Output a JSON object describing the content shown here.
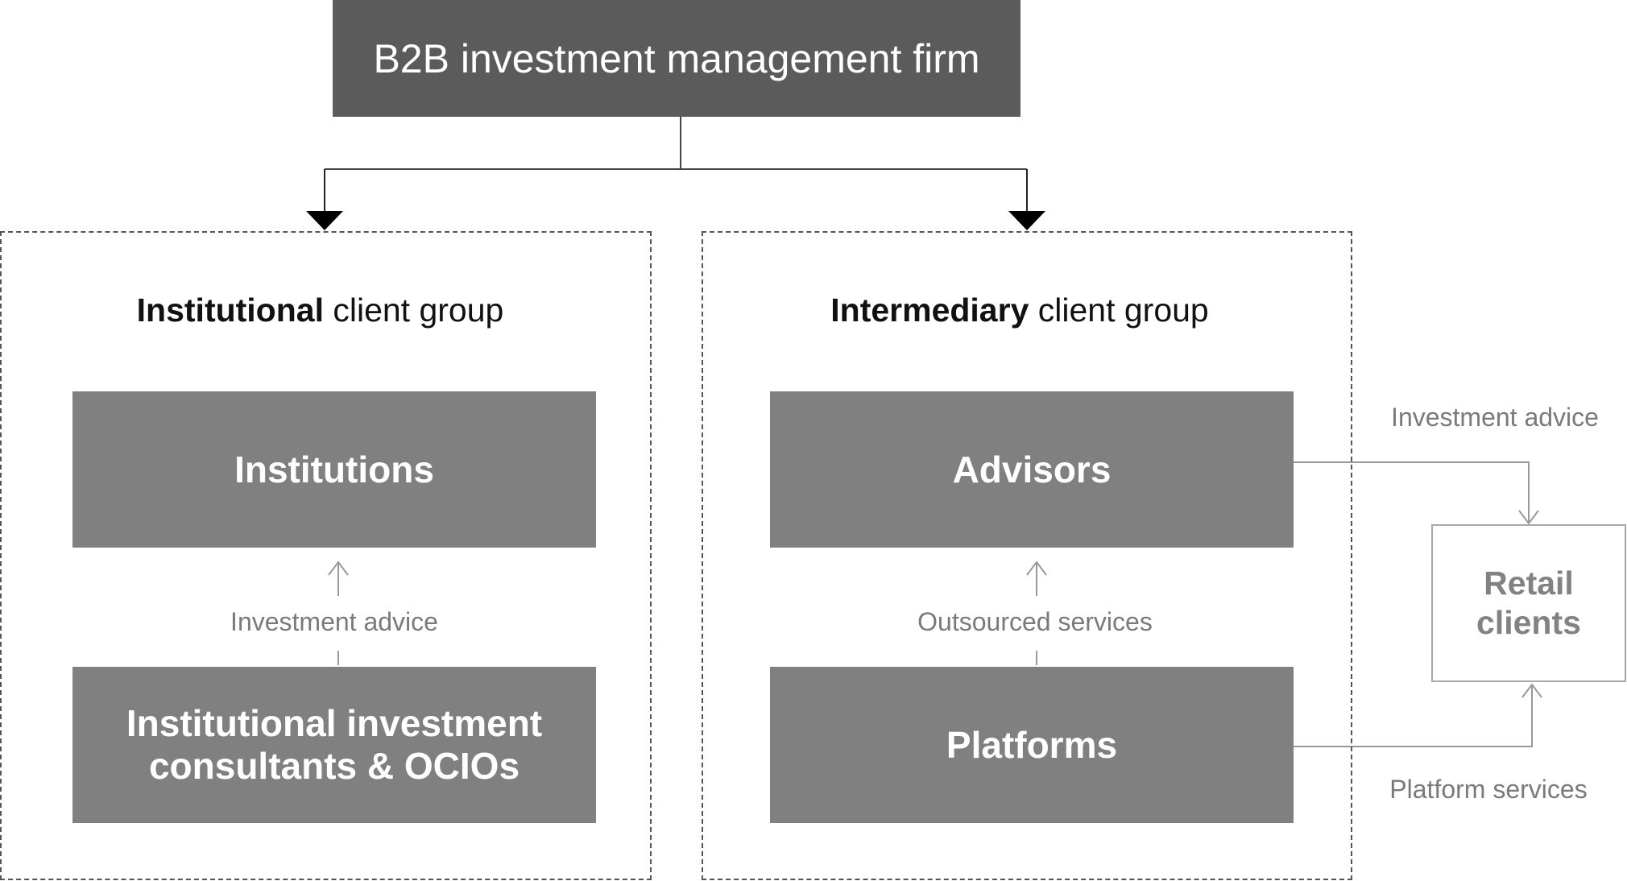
{
  "top": {
    "label": "B2B investment management firm"
  },
  "institutional_group": {
    "title_bold": "Institutional",
    "title_rest": " client group",
    "upper_node": "Institutions",
    "lower_node_line1": "Institutional investment",
    "lower_node_line2": "consultants & OCIOs",
    "link_label": "Investment advice"
  },
  "intermediary_group": {
    "title_bold": "Intermediary",
    "title_rest": " client group",
    "upper_node": "Advisors",
    "lower_node": "Platforms",
    "link_label": "Outsourced services"
  },
  "retail": {
    "line1": "Retail",
    "line2": "clients",
    "advice_label": "Investment advice",
    "platform_label": "Platform services"
  }
}
